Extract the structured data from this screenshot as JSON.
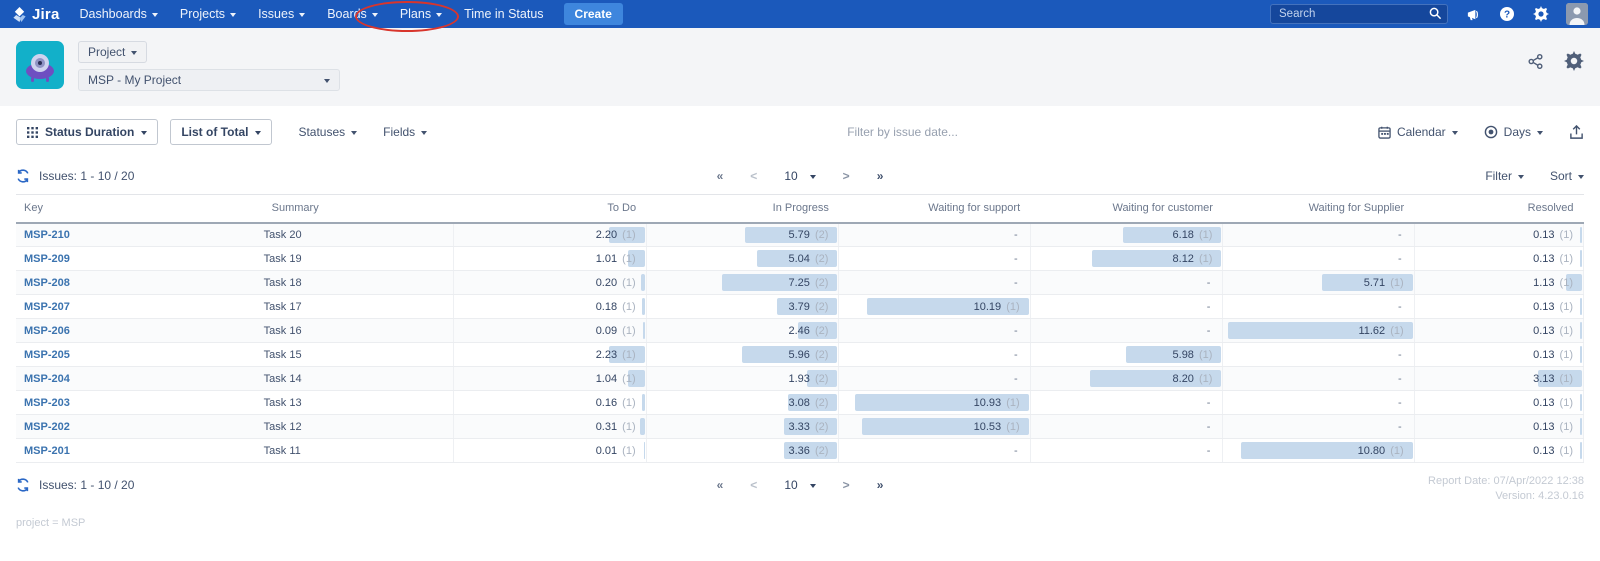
{
  "navbar": {
    "brand": "Jira",
    "items": [
      {
        "label": "Dashboards"
      },
      {
        "label": "Projects"
      },
      {
        "label": "Issues"
      },
      {
        "label": "Boards"
      },
      {
        "label": "Plans"
      },
      {
        "label": "Time in Status"
      }
    ],
    "create_label": "Create",
    "search_placeholder": "Search"
  },
  "project_header": {
    "type_label": "Project",
    "project_name": "MSP - My Project"
  },
  "toolbar": {
    "status_duration_label": "Status Duration",
    "list_of_total_label": "List of Total",
    "statuses_label": "Statuses",
    "fields_label": "Fields",
    "filter_placeholder": "Filter by issue date...",
    "calendar_label": "Calendar",
    "days_label": "Days"
  },
  "results_bar": {
    "issues_label": "Issues: 1 - 10 / 20",
    "page_size": "10",
    "filter_label": "Filter",
    "sort_label": "Sort"
  },
  "table": {
    "bar_max": 12,
    "columns": [
      "Key",
      "Summary",
      "To Do",
      "In Progress",
      "Waiting for support",
      "Waiting for customer",
      "Waiting for Supplier",
      "Resolved"
    ],
    "rows": [
      {
        "key": "MSP-210",
        "summary": "Task 20",
        "cells": [
          {
            "v": "2.20",
            "n": "(1)"
          },
          {
            "v": "5.79",
            "n": "(2)"
          },
          null,
          {
            "v": "6.18",
            "n": "(1)"
          },
          null,
          {
            "v": "0.13",
            "n": "(1)"
          }
        ]
      },
      {
        "key": "MSP-209",
        "summary": "Task 19",
        "cells": [
          {
            "v": "1.01",
            "n": "(1)"
          },
          {
            "v": "5.04",
            "n": "(2)"
          },
          null,
          {
            "v": "8.12",
            "n": "(1)"
          },
          null,
          {
            "v": "0.13",
            "n": "(1)"
          }
        ]
      },
      {
        "key": "MSP-208",
        "summary": "Task 18",
        "cells": [
          {
            "v": "0.20",
            "n": "(1)"
          },
          {
            "v": "7.25",
            "n": "(2)"
          },
          null,
          null,
          {
            "v": "5.71",
            "n": "(1)"
          },
          {
            "v": "1.13",
            "n": "(1)"
          }
        ]
      },
      {
        "key": "MSP-207",
        "summary": "Task 17",
        "cells": [
          {
            "v": "0.18",
            "n": "(1)"
          },
          {
            "v": "3.79",
            "n": "(2)"
          },
          {
            "v": "10.19",
            "n": "(1)"
          },
          null,
          null,
          {
            "v": "0.13",
            "n": "(1)"
          }
        ]
      },
      {
        "key": "MSP-206",
        "summary": "Task 16",
        "cells": [
          {
            "v": "0.09",
            "n": "(1)"
          },
          {
            "v": "2.46",
            "n": "(2)"
          },
          null,
          null,
          {
            "v": "11.62",
            "n": "(1)"
          },
          {
            "v": "0.13",
            "n": "(1)"
          }
        ]
      },
      {
        "key": "MSP-205",
        "summary": "Task 15",
        "cells": [
          {
            "v": "2.23",
            "n": "(1)"
          },
          {
            "v": "5.96",
            "n": "(2)"
          },
          null,
          {
            "v": "5.98",
            "n": "(1)"
          },
          null,
          {
            "v": "0.13",
            "n": "(1)"
          }
        ]
      },
      {
        "key": "MSP-204",
        "summary": "Task 14",
        "cells": [
          {
            "v": "1.04",
            "n": "(1)"
          },
          {
            "v": "1.93",
            "n": "(2)"
          },
          null,
          {
            "v": "8.20",
            "n": "(1)"
          },
          null,
          {
            "v": "3.13",
            "n": "(1)"
          }
        ]
      },
      {
        "key": "MSP-203",
        "summary": "Task 13",
        "cells": [
          {
            "v": "0.16",
            "n": "(1)"
          },
          {
            "v": "3.08",
            "n": "(2)"
          },
          {
            "v": "10.93",
            "n": "(1)"
          },
          null,
          null,
          {
            "v": "0.13",
            "n": "(1)"
          }
        ]
      },
      {
        "key": "MSP-202",
        "summary": "Task 12",
        "cells": [
          {
            "v": "0.31",
            "n": "(1)"
          },
          {
            "v": "3.33",
            "n": "(2)"
          },
          {
            "v": "10.53",
            "n": "(1)"
          },
          null,
          null,
          {
            "v": "0.13",
            "n": "(1)"
          }
        ]
      },
      {
        "key": "MSP-201",
        "summary": "Task 11",
        "cells": [
          {
            "v": "0.01",
            "n": "(1)"
          },
          {
            "v": "3.36",
            "n": "(2)"
          },
          null,
          null,
          {
            "v": "10.80",
            "n": "(1)"
          },
          {
            "v": "0.13",
            "n": "(1)"
          }
        ]
      }
    ]
  },
  "footer": {
    "issues_label": "Issues: 1 - 10 / 20",
    "page_size": "10",
    "report_date": "Report Date: 07/Apr/2022 12:38",
    "version": "Version: 4.23.0.16",
    "query": "project = MSP"
  },
  "colors": {
    "navbar": "#1b59bb",
    "create_button": "#3e86dd",
    "bar_fill": "#c6d9ec",
    "link": "#3b73af",
    "annotation": "#d8352c"
  }
}
